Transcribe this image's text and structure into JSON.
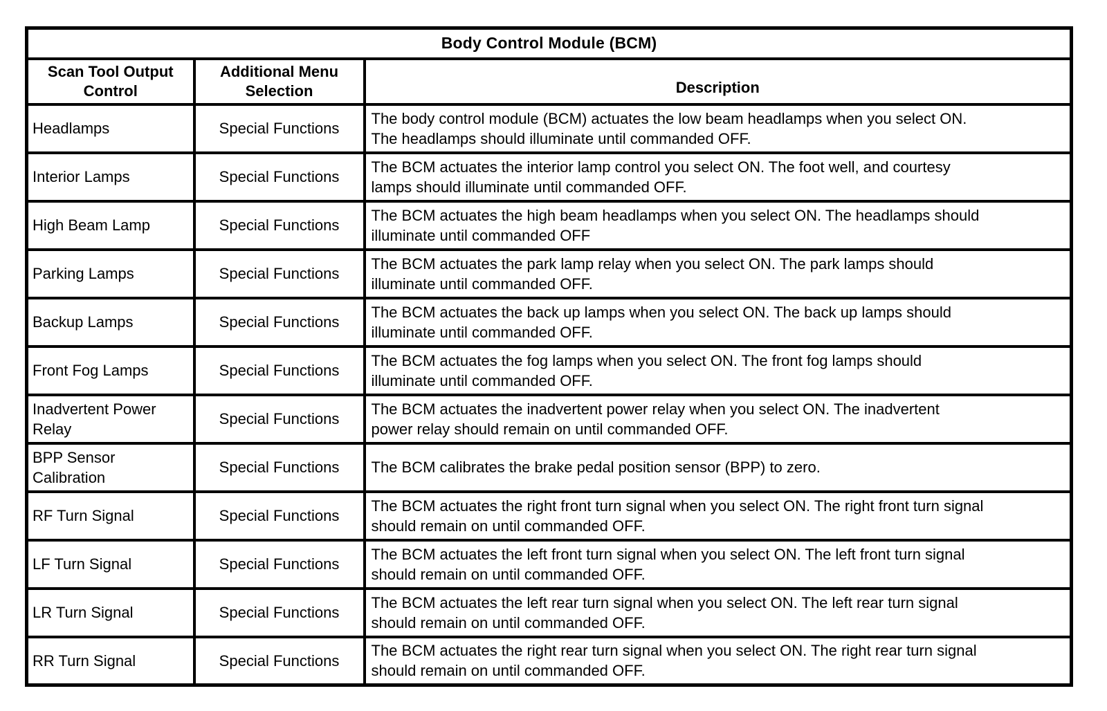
{
  "table": {
    "title": "Body Control Module (BCM)",
    "columns": [
      "Scan Tool Output\nControl",
      "Additional Menu\nSelection",
      "Description"
    ],
    "rows": [
      {
        "control": "Headlamps",
        "menu": "Special Functions",
        "description": "The body control module (BCM) actuates the low beam headlamps when you select ON.\nThe headlamps should illuminate until commanded OFF."
      },
      {
        "control": "Interior Lamps",
        "menu": "Special Functions",
        "description": "The BCM actuates the interior lamp control you select ON. The foot well, and courtesy\nlamps should illuminate until commanded OFF."
      },
      {
        "control": "High Beam Lamp",
        "menu": "Special Functions",
        "description": "The BCM actuates the high beam headlamps when you select ON. The headlamps should\nilluminate until commanded OFF"
      },
      {
        "control": "Parking Lamps",
        "menu": "Special Functions",
        "description": "The BCM actuates the park lamp relay when you select ON. The park lamps should\nilluminate until commanded OFF."
      },
      {
        "control": "Backup Lamps",
        "menu": "Special Functions",
        "description": "The BCM actuates the back up lamps when you select ON. The back up lamps should\nilluminate until commanded OFF."
      },
      {
        "control": "Front Fog Lamps",
        "menu": "Special Functions",
        "description": "The BCM actuates the fog lamps when you select ON. The front fog lamps should\nilluminate until commanded OFF."
      },
      {
        "control": "Inadvertent Power\nRelay",
        "menu": "Special Functions",
        "description": "The BCM actuates the inadvertent power relay when you select ON. The inadvertent\npower relay should remain on until commanded OFF."
      },
      {
        "control": "BPP Sensor\nCalibration",
        "menu": "Special Functions",
        "description": "The BCM calibrates the brake pedal position sensor (BPP) to zero."
      },
      {
        "control": "RF Turn Signal",
        "menu": "Special Functions",
        "description": "The BCM actuates the right front turn signal when you select ON. The right front turn signal\nshould remain on until commanded OFF."
      },
      {
        "control": "LF Turn Signal",
        "menu": "Special Functions",
        "description": "The BCM actuates the left front turn signal when you select ON. The left front turn signal\nshould remain on until commanded OFF."
      },
      {
        "control": "LR Turn Signal",
        "menu": "Special Functions",
        "description": "The BCM actuates the left rear turn signal when you select ON. The left rear turn signal\nshould remain on until commanded OFF."
      },
      {
        "control": "RR Turn Signal",
        "menu": "Special Functions",
        "description": "The BCM actuates the right rear turn signal when you select ON. The right rear turn signal\nshould remain on until commanded OFF."
      }
    ]
  }
}
